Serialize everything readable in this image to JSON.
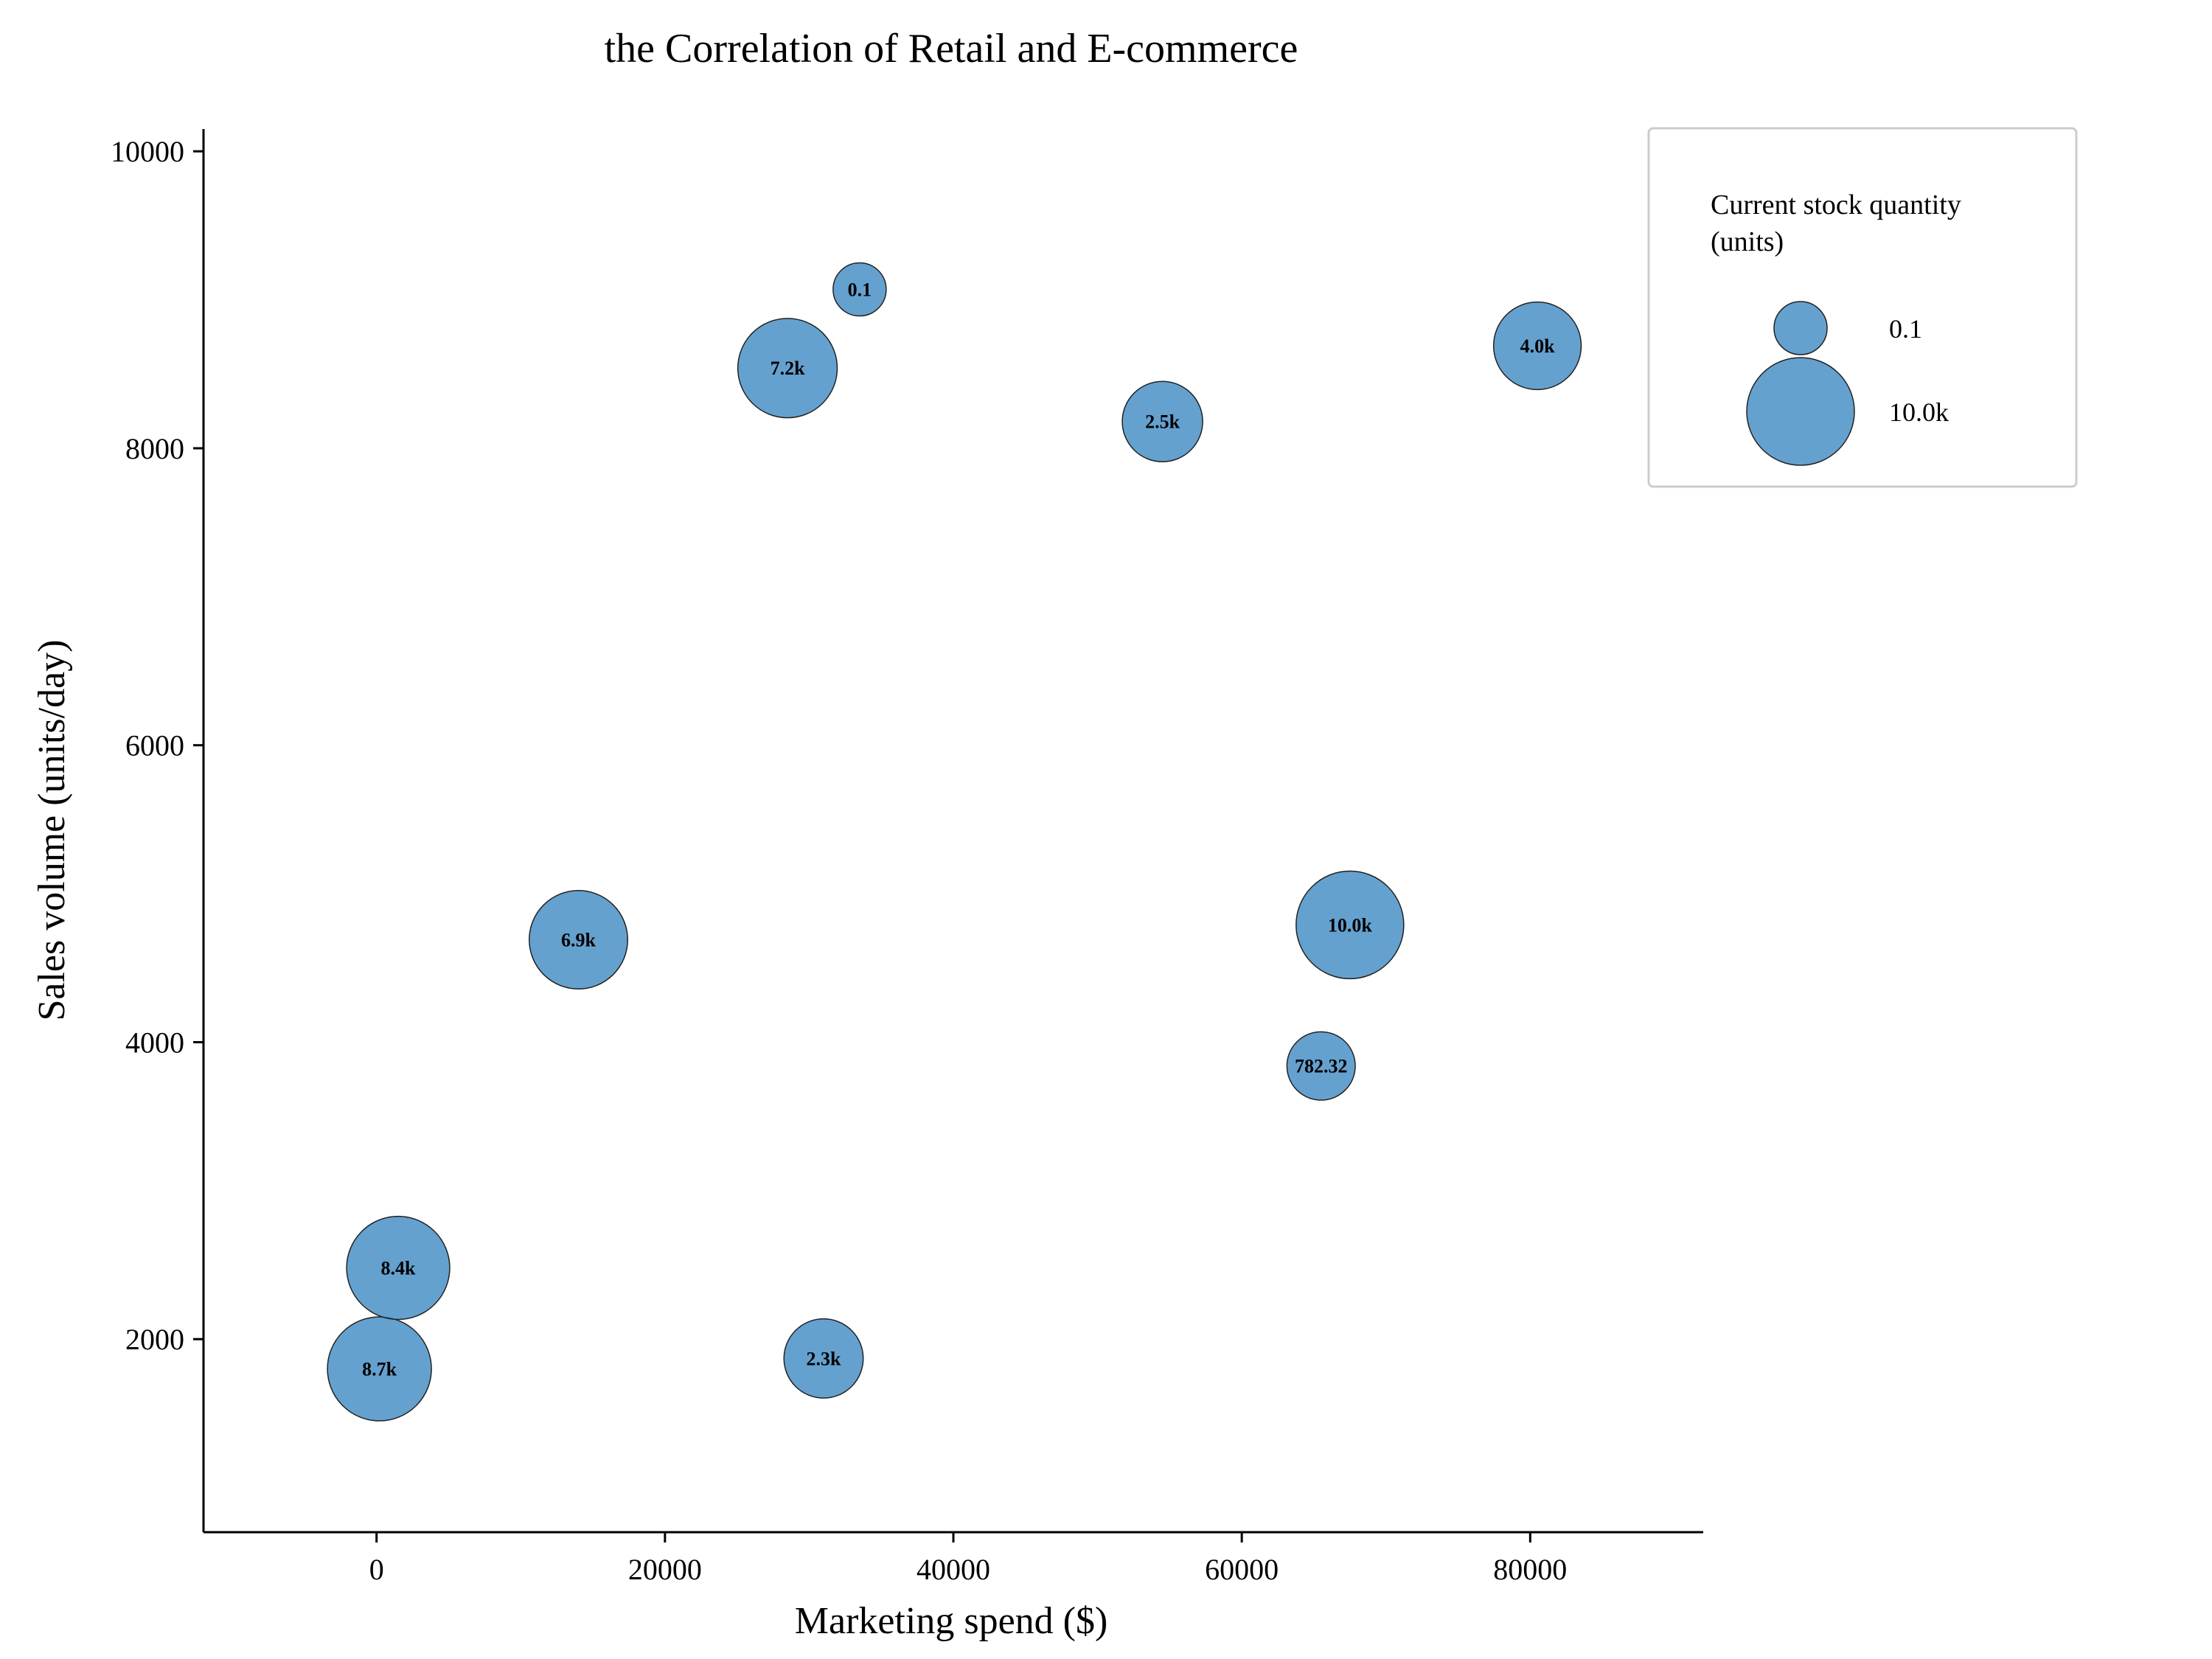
{
  "chart_data": {
    "type": "scatter",
    "title": "the Correlation of Retail and E-commerce",
    "xlabel": "Marketing spend ($)",
    "ylabel": "Sales volume (units/day)",
    "xlim": [
      -12000,
      92000
    ],
    "ylim": [
      700,
      10150
    ],
    "xticks": [
      0,
      20000,
      40000,
      60000,
      80000
    ],
    "xtick_labels": [
      "0",
      "20000",
      "40000",
      "60000",
      "80000"
    ],
    "yticks": [
      2000,
      4000,
      6000,
      8000,
      10000
    ],
    "ytick_labels": [
      "2000",
      "4000",
      "6000",
      "8000",
      "10000"
    ],
    "grid": false,
    "bubble_color": "#3a87c2",
    "bubble_stroke": "#222222",
    "legend": {
      "placement": "upper-right-outside",
      "title": "Current stock quantity\n(units)",
      "entries": [
        {
          "label": "0.1",
          "size": 0.1
        },
        {
          "label": "10.0k",
          "size": 10000
        }
      ]
    },
    "points": [
      {
        "x": 33500,
        "y": 9070,
        "size": 0.1,
        "label": "0.1"
      },
      {
        "x": 28500,
        "y": 8540,
        "size": 7200,
        "label": "7.2k"
      },
      {
        "x": 54500,
        "y": 8180,
        "size": 2500,
        "label": "2.5k"
      },
      {
        "x": 80500,
        "y": 8690,
        "size": 4000,
        "label": "4.0k"
      },
      {
        "x": 14000,
        "y": 4690,
        "size": 6900,
        "label": "6.9k"
      },
      {
        "x": 67500,
        "y": 4790,
        "size": 10000,
        "label": "10.0k"
      },
      {
        "x": 65500,
        "y": 3840,
        "size": 782.32,
        "label": "782.32"
      },
      {
        "x": 1500,
        "y": 2480,
        "size": 8400,
        "label": "8.4k"
      },
      {
        "x": 200,
        "y": 1800,
        "size": 8700,
        "label": "8.7k"
      },
      {
        "x": 31000,
        "y": 1870,
        "size": 2300,
        "label": "2.3k"
      }
    ]
  }
}
